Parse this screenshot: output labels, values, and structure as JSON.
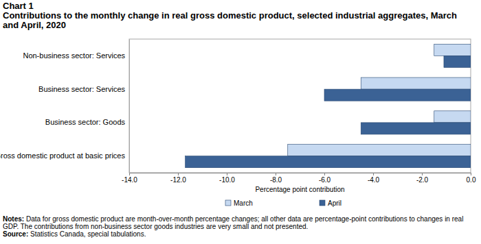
{
  "chart_data": {
    "type": "bar",
    "orientation": "horizontal",
    "title": "Chart 1",
    "subtitle": "Contributions to the monthly change in real gross domestic product, selected industrial aggregates, March and April, 2020",
    "categories": [
      "Non-business sector: Services",
      "Business sector: Services",
      "Business sector: Goods",
      "Gross domestic product at basic prices"
    ],
    "series": [
      {
        "name": "March",
        "color": "#c6d9f1",
        "values": [
          -1.5,
          -4.5,
          -1.5,
          -7.5
        ]
      },
      {
        "name": "April",
        "color": "#3b6295",
        "values": [
          -1.1,
          -6.0,
          -4.5,
          -11.7
        ]
      }
    ],
    "x_label": "Percentage point contribution",
    "xlim": [
      -14,
      0
    ],
    "xticks": [
      {
        "value": -14,
        "label": "-14.0"
      },
      {
        "value": -12,
        "label": "-12.0"
      },
      {
        "value": -10,
        "label": "-10.0"
      },
      {
        "value": -8,
        "label": "-8.0"
      },
      {
        "value": -6,
        "label": "-6.0"
      },
      {
        "value": -4,
        "label": "-4.0"
      },
      {
        "value": -2,
        "label": "-2.0"
      },
      {
        "value": 0,
        "label": "0.0"
      }
    ],
    "grid": false,
    "legend": "bottom",
    "data_labels": false,
    "notes": "Notes: Data for gross domestic product are month-over-month percentage changes; all other data are percentage-point contributions to changes in real GDP. The contributions from non-business sector goods industries are very small and not presented.",
    "source": "Source: Statistics Canada, special tabulations."
  }
}
